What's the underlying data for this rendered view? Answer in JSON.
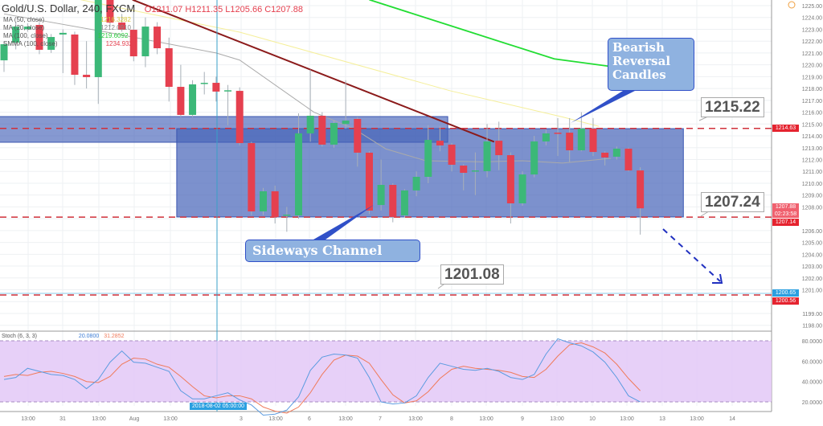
{
  "header": {
    "title": "Gold/U.S. Dollar, 240, FXCM",
    "ohlc": "O1211.07 H1211.35 L1205.66 C1207.88"
  },
  "legend": [
    {
      "label": "MA (50, close)",
      "value": "1216.3282",
      "color": "#e8d84a"
    },
    {
      "label": "MA (20, close)",
      "value": "1212.0910",
      "color": "#999999"
    },
    {
      "label": "MA (100, close)",
      "value": "1219.6092",
      "color": "#2ecc40"
    },
    {
      "label": "SMMA (100, close)",
      "value": "1234.9320",
      "color": "#e5404f"
    }
  ],
  "stoch_header": {
    "label": "Stoch (6, 3, 3)",
    "k_value": "20.0800",
    "d_value": "31.2852"
  },
  "annotations": {
    "bearish": "Bearish Reversal Candles",
    "sideways": "Sideways Channel",
    "level_1215": "1215.22",
    "level_1207": "1207.24",
    "level_1201": "1201.08"
  },
  "price_tags": [
    {
      "text": "1214.63",
      "color": "#e5232f",
      "price": 1214.63
    },
    {
      "text": "1207.88",
      "color": "#f0606e",
      "price": 1208.0
    },
    {
      "text": "02:23:58",
      "color": "#f0606e",
      "price": 1207.55
    },
    {
      "text": "1207.14",
      "color": "#e5232f",
      "price": 1207.05
    },
    {
      "text": "1200.65",
      "color": "#2a9fe0",
      "price": 1200.72
    },
    {
      "text": "1200.56",
      "color": "#e5232f",
      "price": 1200.05
    }
  ],
  "crosshair_time": "2018-08-02 05:00:00",
  "colors": {
    "up": "#3cb878",
    "down": "#e5404f",
    "box": "#4563b8",
    "stoch_fill": "#e3c8f7",
    "k": "#5b9be0",
    "d": "#f07a5a",
    "trend": "#8b1a1a"
  },
  "chart_data": {
    "type": "candlestick",
    "price_axis": {
      "ylim": [
        1197.5,
        1225.5
      ],
      "ticks": [
        "1225.00",
        "1224.00",
        "1223.00",
        "1222.00",
        "1221.00",
        "1220.00",
        "1219.00",
        "1218.00",
        "1217.00",
        "1216.00",
        "1215.00",
        "1214.00",
        "1213.00",
        "1212.00",
        "1211.00",
        "1210.00",
        "1209.00",
        "1208.00",
        "1206.00",
        "1205.00",
        "1204.00",
        "1203.00",
        "1202.00",
        "1201.00",
        "1199.00",
        "1198.00"
      ]
    },
    "time_axis": {
      "ticks": [
        "13:00",
        "31",
        "13:00",
        "Aug",
        "13:00",
        "",
        "3",
        "13:00",
        "6",
        "13:00",
        "7",
        "13:00",
        "8",
        "13:00",
        "9",
        "13:00",
        "10",
        "13:00",
        "13",
        "13:00",
        "14"
      ]
    },
    "candles": [
      [
        1220.38,
        1222.0,
        1219.4,
        1221.74
      ],
      [
        1221.88,
        1223.6,
        1221.3,
        1223.23
      ],
      [
        1223.0,
        1223.5,
        1222.8,
        1223.23
      ],
      [
        1223.37,
        1223.6,
        1220.9,
        1221.27
      ],
      [
        1221.27,
        1222.6,
        1221.0,
        1222.35
      ],
      [
        1222.56,
        1223.0,
        1219.3,
        1222.7
      ],
      [
        1222.56,
        1222.8,
        1218.3,
        1219.16
      ],
      [
        1219.16,
        1222.0,
        1218.0,
        1218.96
      ],
      [
        1218.96,
        1226.0,
        1216.7,
        1225.6
      ],
      [
        1225.6,
        1226.0,
        1223.2,
        1223.57
      ],
      [
        1223.57,
        1224.3,
        1222.8,
        1222.96
      ],
      [
        1222.96,
        1224.5,
        1220.3,
        1220.72
      ],
      [
        1220.72,
        1224.0,
        1219.8,
        1223.23
      ],
      [
        1223.23,
        1223.6,
        1220.9,
        1221.4
      ],
      [
        1221.4,
        1222.3,
        1216.9,
        1218.14
      ],
      [
        1218.14,
        1220.0,
        1215.6,
        1215.77
      ],
      [
        1215.77,
        1218.7,
        1215.6,
        1218.35
      ],
      [
        1218.41,
        1219.4,
        1217.5,
        1218.48
      ],
      [
        1218.48,
        1219.0,
        1216.9,
        1217.74
      ],
      [
        1217.8,
        1218.3,
        1214.9,
        1217.85
      ],
      [
        1217.8,
        1218.1,
        1213.2,
        1213.39
      ],
      [
        1213.39,
        1213.5,
        1207.3,
        1207.62
      ],
      [
        1207.62,
        1209.6,
        1207.3,
        1209.32
      ],
      [
        1209.32,
        1209.8,
        1206.6,
        1207.15
      ],
      [
        1207.28,
        1208.0,
        1205.9,
        1207.35
      ],
      [
        1207.28,
        1215.9,
        1207.0,
        1214.21
      ],
      [
        1214.21,
        1219.6,
        1213.5,
        1215.7
      ],
      [
        1215.7,
        1216.0,
        1213.1,
        1213.26
      ],
      [
        1213.26,
        1215.3,
        1213.0,
        1215.09
      ],
      [
        1215.0,
        1218.7,
        1214.6,
        1215.29
      ],
      [
        1215.43,
        1215.6,
        1211.4,
        1212.58
      ],
      [
        1212.58,
        1212.7,
        1207.4,
        1207.69
      ],
      [
        1208.16,
        1212.0,
        1207.7,
        1209.86
      ],
      [
        1209.86,
        1210.0,
        1206.7,
        1207.15
      ],
      [
        1207.28,
        1209.5,
        1207.1,
        1209.39
      ],
      [
        1209.39,
        1211.0,
        1208.9,
        1210.54
      ],
      [
        1210.54,
        1214.9,
        1210.0,
        1213.66
      ],
      [
        1213.59,
        1214.8,
        1212.7,
        1213.19
      ],
      [
        1213.26,
        1213.4,
        1211.0,
        1211.56
      ],
      [
        1211.49,
        1211.6,
        1209.4,
        1210.88
      ],
      [
        1211.02,
        1212.6,
        1209.0,
        1211.08
      ],
      [
        1211.02,
        1215.0,
        1210.5,
        1213.53
      ],
      [
        1213.59,
        1215.2,
        1211.1,
        1212.37
      ],
      [
        1212.37,
        1212.6,
        1206.6,
        1208.3
      ],
      [
        1208.3,
        1211.0,
        1208.1,
        1210.74
      ],
      [
        1210.74,
        1214.0,
        1210.5,
        1213.53
      ],
      [
        1213.53,
        1214.5,
        1213.2,
        1214.21
      ],
      [
        1214.27,
        1215.5,
        1212.3,
        1214.2
      ],
      [
        1214.27,
        1215.5,
        1211.8,
        1212.78
      ],
      [
        1212.78,
        1216.0,
        1212.7,
        1214.61
      ],
      [
        1214.61,
        1215.5,
        1212.3,
        1212.64
      ],
      [
        1212.58,
        1212.7,
        1211.5,
        1212.17
      ],
      [
        1212.24,
        1213.1,
        1212.0,
        1212.92
      ],
      [
        1212.92,
        1213.0,
        1211.0,
        1211.08
      ],
      [
        1211.08,
        1211.35,
        1205.66,
        1207.88
      ]
    ],
    "moving_averages": [
      {
        "name": "MA (20, close)",
        "points": [
          [
            0,
            1224.3
          ],
          [
            8.5,
            1222.8
          ],
          [
            18,
            1221.0
          ],
          [
            20,
            1220.4
          ],
          [
            26.3,
            1216.0
          ],
          [
            29.7,
            1214.6
          ],
          [
            32.4,
            1212.9
          ],
          [
            35.8,
            1211.9
          ],
          [
            40.6,
            1211.8
          ],
          [
            44,
            1211.9
          ],
          [
            47.4,
            1211.7
          ],
          [
            51.5,
            1212.1
          ]
        ]
      },
      {
        "name": "MA (50, close)",
        "points": [
          [
            6.5,
            1225.5
          ],
          [
            20,
            1222.76
          ],
          [
            37.9,
            1217.8
          ],
          [
            47.4,
            1215.6
          ],
          [
            50.5,
            1214.8
          ]
        ]
      },
      {
        "name": "MA (100, close)",
        "points": [
          [
            31,
            1225.5
          ],
          [
            37.9,
            1223.3
          ],
          [
            46.7,
            1220.5
          ],
          [
            54.2,
            1219.5
          ]
        ]
      }
    ],
    "trendline": [
      [
        10.9,
        1225.5
      ],
      [
        41.6,
        1213.5
      ]
    ],
    "zones": [
      {
        "from_index": -0.5,
        "to_index": 38,
        "top": 1215.63,
        "bottom": 1213.46
      },
      {
        "from_index": 15,
        "to_index": 58,
        "top": 1214.61,
        "bottom": 1207.15
      }
    ],
    "levels": [
      1214.63,
      1207.14,
      1200.56
    ],
    "stochastic": {
      "ylim": [
        0,
        100
      ],
      "bands": [
        20,
        80
      ],
      "ticks": [
        "80.0000",
        "60.0000",
        "40.0000",
        "20.0000"
      ],
      "k": [
        42,
        44,
        53,
        50,
        47,
        46,
        42,
        33,
        42,
        59,
        70,
        59,
        58,
        54,
        50,
        31,
        23,
        23,
        26,
        29,
        22,
        17,
        7,
        8,
        12,
        25,
        51,
        64,
        67,
        66,
        63,
        44,
        20,
        18,
        19,
        26,
        44,
        58,
        55,
        52,
        51,
        53,
        50,
        44,
        42,
        47,
        67,
        82,
        78,
        75,
        69,
        59,
        44,
        26,
        20
      ],
      "d": [
        45,
        47,
        46,
        49,
        50,
        48,
        45,
        40,
        39,
        45,
        57,
        63,
        62,
        57,
        54,
        45,
        35,
        26,
        24,
        26,
        26,
        23,
        15,
        11,
        9,
        15,
        29,
        47,
        61,
        66,
        65,
        58,
        42,
        27,
        19,
        21,
        30,
        43,
        52,
        55,
        53,
        52,
        51,
        49,
        45,
        44,
        52,
        65,
        76,
        78,
        74,
        68,
        57,
        43,
        31
      ]
    }
  }
}
